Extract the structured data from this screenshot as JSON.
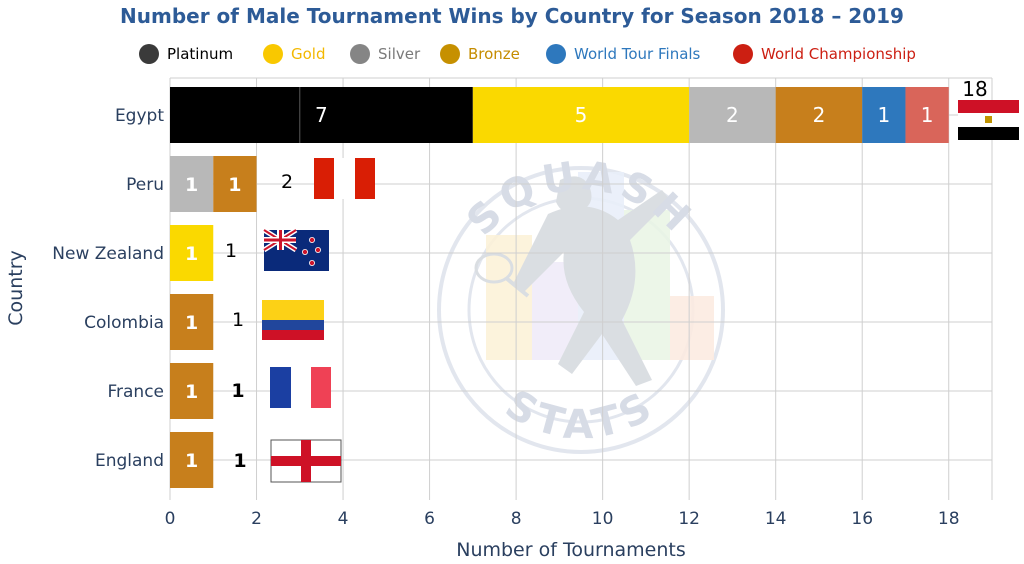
{
  "chart_data": {
    "type": "bar",
    "orientation": "horizontal",
    "stacked": true,
    "title": "Number of Male Tournament Wins by Country for Season 2018 – 2019",
    "xlabel": "Number of Tournaments",
    "ylabel": "Country",
    "xlim": [
      0,
      19
    ],
    "xticks": [
      0,
      2,
      4,
      6,
      8,
      10,
      12,
      14,
      16,
      18
    ],
    "xtick_labels": [
      "0",
      "2",
      "4",
      "6",
      "8",
      "10",
      "12",
      "14",
      "16",
      "18"
    ],
    "grid": true,
    "legend_position": "top",
    "categories": [
      "Egypt",
      "Peru",
      "New Zealand",
      "Colombia",
      "France",
      "England"
    ],
    "series": [
      {
        "name": "Platinum",
        "color": "#000000",
        "values": [
          7,
          0,
          0,
          0,
          0,
          0
        ]
      },
      {
        "name": "Gold",
        "color": "#fad900",
        "values": [
          5,
          0,
          1,
          0,
          0,
          0
        ]
      },
      {
        "name": "Silver",
        "color": "#b8b8b8",
        "values": [
          2,
          1,
          0,
          0,
          0,
          0
        ]
      },
      {
        "name": "Bronze",
        "color": "#c77f1c",
        "values": [
          2,
          1,
          0,
          1,
          1,
          1
        ]
      },
      {
        "name": "World Tour Finals",
        "color": "#2e78bd",
        "values": [
          1,
          0,
          0,
          0,
          0,
          0
        ]
      },
      {
        "name": "World Championship",
        "color": "#d9655a",
        "values": [
          1,
          0,
          0,
          0,
          0,
          0
        ]
      }
    ],
    "totals": [
      "18",
      "2",
      "1",
      "1",
      "1",
      "1"
    ],
    "flags": [
      "egypt-flag",
      "peru-flag",
      "new-zealand-flag",
      "colombia-flag",
      "france-flag",
      "england-flag"
    ]
  },
  "legend": [
    {
      "label": "Platinum",
      "dot_color": "#3a3a3a",
      "text_color": "#000000"
    },
    {
      "label": "Gold",
      "dot_color": "#f9c800",
      "text_color": "#f3b800"
    },
    {
      "label": "Silver",
      "dot_color": "#858585",
      "text_color": "#7a7a7a"
    },
    {
      "label": "Bronze",
      "dot_color": "#c69000",
      "text_color": "#c58c00"
    },
    {
      "label": "World Tour Finals",
      "dot_color": "#2e78bd",
      "text_color": "#2e78bd"
    },
    {
      "label": "World Championship",
      "dot_color": "#cc1f12",
      "text_color": "#cc1f12"
    }
  ],
  "colors": {
    "title": "#2d5b97",
    "axis_text": "#2a3f5f",
    "grid": "#cfcfcf"
  },
  "watermark": {
    "top_text": "SQUASH",
    "bottom_text": "STATS"
  }
}
